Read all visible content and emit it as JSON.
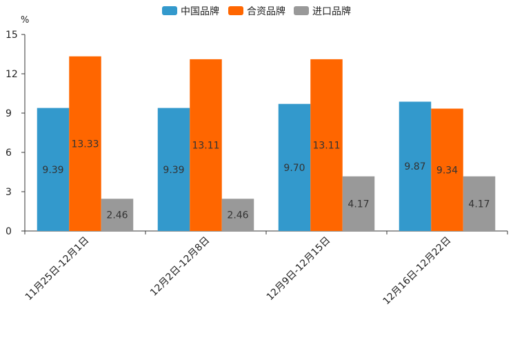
{
  "chart_data": {
    "type": "bar",
    "unit": "%",
    "categories": [
      "11月25日-12月1日",
      "12月2日-12月8日",
      "12月9日-12月15日",
      "12月16日-12月22日"
    ],
    "series": [
      {
        "name": "中国品牌",
        "color": "#3399cc",
        "values": [
          9.39,
          9.39,
          9.7,
          9.87
        ],
        "labels": [
          "9.39",
          "9.39",
          "9.70",
          "9.87"
        ]
      },
      {
        "name": "合资品牌",
        "color": "#ff6600",
        "values": [
          13.33,
          13.11,
          13.11,
          9.34
        ],
        "labels": [
          "13.33",
          "13.11",
          "13.11",
          "9.34"
        ]
      },
      {
        "name": "进口品牌",
        "color": "#999999",
        "values": [
          2.46,
          2.46,
          4.17,
          4.17
        ],
        "labels": [
          "2.46",
          "2.46",
          "4.17",
          "4.17"
        ]
      }
    ],
    "ylim": [
      0,
      15
    ],
    "yticks": [
      0,
      3,
      6,
      9,
      12,
      15
    ],
    "ytick_labels": [
      "0",
      "3",
      "6",
      "9",
      "12",
      "15"
    ],
    "legend_position": "top-center",
    "grid": false
  }
}
